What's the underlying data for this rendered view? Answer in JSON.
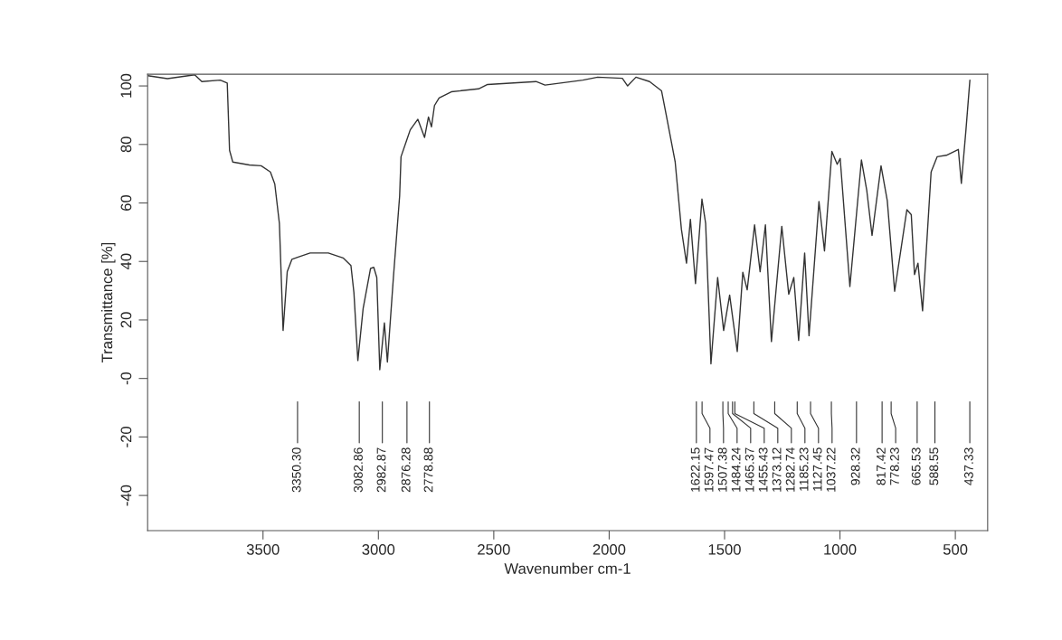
{
  "chart_data": {
    "type": "line",
    "xlabel": "Wavenumber cm-1",
    "ylabel": "Transmittance [%]",
    "xlim": [
      4000,
      360
    ],
    "ylim": [
      -52,
      104
    ],
    "xticks": [
      3500,
      3000,
      2500,
      2000,
      1500,
      1000,
      500
    ],
    "yticks": [
      -40,
      -20,
      {
        "value": 0,
        "label": "-0"
      },
      20,
      40,
      60,
      80,
      100
    ],
    "series": [
      {
        "color": "#333333",
        "x": [
          3999,
          3914,
          3796,
          3765,
          3685,
          3655,
          3645,
          3631,
          3559,
          3508,
          3468,
          3449,
          3429,
          3413,
          3395,
          3375,
          3350.3,
          3296,
          3217,
          3153,
          3119,
          3106,
          3089,
          3066,
          3034,
          3020,
          3007,
          2994,
          2974,
          2961,
          2935,
          2908,
          2902,
          2876.28,
          2862,
          2829,
          2800,
          2783,
          2770,
          2757,
          2737,
          2684,
          2566,
          2527,
          2317,
          2278,
          2114,
          2050,
          1943,
          1920,
          1884,
          1825,
          1773,
          1753,
          1714,
          1687,
          1665,
          1648,
          1626,
          1598,
          1582,
          1559,
          1530,
          1504,
          1478,
          1465.37,
          1445,
          1421,
          1402,
          1370,
          1346,
          1323,
          1297,
          1282.74,
          1252,
          1222,
          1200,
          1179,
          1153,
          1134,
          1091,
          1067,
          1035,
          1012,
          999,
          957,
          928.32,
          907,
          884,
          861,
          822,
          795,
          778.23,
          763,
          710,
          691,
          677,
          662,
          642,
          605,
          579,
          539,
          487,
          474,
          454,
          437
        ],
        "values": [
          103.5,
          102.5,
          103.8,
          101.5,
          102,
          101,
          78,
          74,
          73,
          72.7,
          70.6,
          66.5,
          53,
          16.4,
          36.5,
          40.7,
          41.4,
          42.9,
          42.9,
          41.2,
          38.6,
          29.3,
          6.1,
          24,
          37.6,
          38,
          34.5,
          3,
          19,
          5.6,
          34.5,
          62.3,
          75.8,
          81.7,
          85,
          88.6,
          82.4,
          89.4,
          86,
          93.3,
          95.9,
          98,
          99,
          100.5,
          101.5,
          100.3,
          102,
          103,
          102.6,
          100,
          103,
          101.5,
          98.3,
          90.2,
          74,
          51,
          39.4,
          54.4,
          32.4,
          61.3,
          53,
          5,
          34.5,
          16.4,
          28.5,
          21.1,
          9.2,
          36.3,
          30.3,
          52.5,
          36.5,
          52.5,
          12.6,
          25.1,
          52,
          28.8,
          34.5,
          13,
          42.9,
          14.6,
          60.5,
          43.6,
          77.6,
          73.2,
          75.2,
          31.4,
          56.2,
          74.7,
          64.4,
          48.9,
          72.7,
          60.8,
          44.6,
          29.8,
          57.7,
          56,
          35.5,
          39.4,
          23.1,
          70.6,
          75.8,
          76.3,
          78.3,
          66.7,
          85,
          102
        ]
      }
    ],
    "annotations": [
      {
        "text": "3350.30",
        "x": 3350.3
      },
      {
        "text": "3082.86",
        "x": 3082.86
      },
      {
        "text": "2982.87",
        "x": 2982.87
      },
      {
        "text": "2876.28",
        "x": 2876.28
      },
      {
        "text": "2778.88",
        "x": 2778.88
      },
      {
        "text": "1622.15",
        "x": 1622.15
      },
      {
        "text": "1597.47",
        "x": 1597.47
      },
      {
        "text": "1507.38",
        "x": 1507.38
      },
      {
        "text": "1484.24",
        "x": 1484.24
      },
      {
        "text": "1465.37",
        "x": 1465.37
      },
      {
        "text": "1455.43",
        "x": 1455.43
      },
      {
        "text": "1373.12",
        "x": 1373.12
      },
      {
        "text": "1282.74",
        "x": 1282.74
      },
      {
        "text": "1185.23",
        "x": 1185.23
      },
      {
        "text": "1127.45",
        "x": 1127.45
      },
      {
        "text": "1037.22",
        "x": 1037.22
      },
      {
        "text": "928.32",
        "x": 928.32
      },
      {
        "text": "817.42",
        "x": 817.42
      },
      {
        "text": "778.23",
        "x": 778.23
      },
      {
        "text": "665.53",
        "x": 665.53
      },
      {
        "text": "588.55",
        "x": 588.55
      },
      {
        "text": "437.33",
        "x": 437.33
      }
    ]
  }
}
